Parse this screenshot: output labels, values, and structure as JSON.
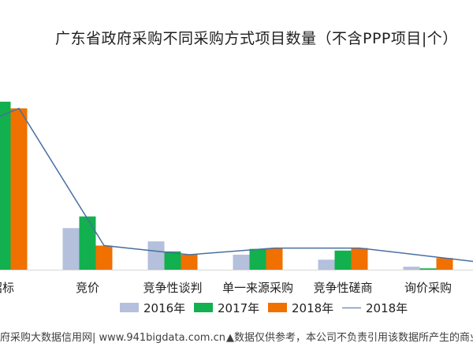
{
  "chart_data": {
    "type": "bar",
    "title": "广东省政府采购不同采购方式项目数量（不含PPP项目|个）",
    "categories": [
      "招标",
      "竞价",
      "竞争性谈判",
      "单一来源采购",
      "竞争性磋商",
      "询价采购"
    ],
    "series": [
      {
        "name": "2016年",
        "type": "bar",
        "color": "#b4c0dc",
        "values": [
          null,
          25,
          17,
          9,
          6,
          1.8
        ]
      },
      {
        "name": "2017年",
        "type": "bar",
        "color": "#12b04e",
        "values": [
          101,
          32,
          11,
          12.5,
          11.5,
          0.8
        ]
      },
      {
        "name": "2018年",
        "type": "bar",
        "color": "#f07000",
        "values": [
          97,
          14.5,
          9,
          13,
          13,
          7
        ]
      },
      {
        "name": "2018年",
        "type": "line",
        "color": "#4a6fa0",
        "values": [
          97,
          14.5,
          9,
          13,
          13,
          7
        ]
      }
    ],
    "ylim": [
      0,
      110
    ]
  },
  "footer": {
    "source": "府采购大数据信用网| www.941bigdata.com.cn",
    "disclaimer": "▲数据仅供参考，本公司不负责引用该数据所产生的商业负"
  }
}
